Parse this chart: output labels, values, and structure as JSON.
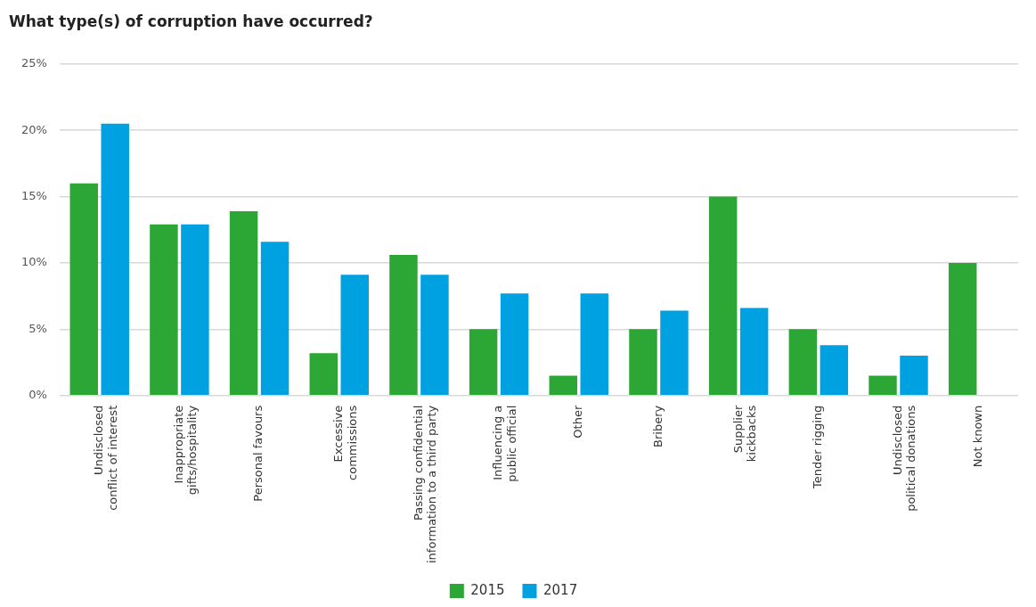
{
  "chart_data": {
    "type": "bar",
    "title": "What type(s) of corruption have occurred?",
    "categories": [
      "Undisclosed conflict of interest",
      "Inappropriate gifts/hospitality",
      "Personal favours",
      "Excessive commissions",
      "Passing confidential information to a third party",
      "Influencing a public official",
      "Other",
      "Bribery",
      "Supplier kickbacks",
      "Tender rigging",
      "Undisclosed political donations",
      "Not known"
    ],
    "series": [
      {
        "name": "2015",
        "color": "#2ca635",
        "values": [
          16,
          12.9,
          13.9,
          3.2,
          10.6,
          5,
          1.5,
          5,
          15,
          5,
          1.5,
          10
        ]
      },
      {
        "name": "2017",
        "color": "#00a1e0",
        "values": [
          20.5,
          12.9,
          11.6,
          9.1,
          9.1,
          7.7,
          7.7,
          6.4,
          6.6,
          3.8,
          3,
          null
        ]
      }
    ],
    "ylim": [
      0,
      25
    ],
    "yticks": [
      {
        "value": 0,
        "label": "0%"
      },
      {
        "value": 5,
        "label": "5%"
      },
      {
        "value": 10,
        "label": "10%"
      },
      {
        "value": 15,
        "label": "15%"
      },
      {
        "value": 20,
        "label": "20%"
      },
      {
        "value": 25,
        "label": "25%"
      }
    ],
    "grid": "y",
    "legend": "bottom"
  }
}
